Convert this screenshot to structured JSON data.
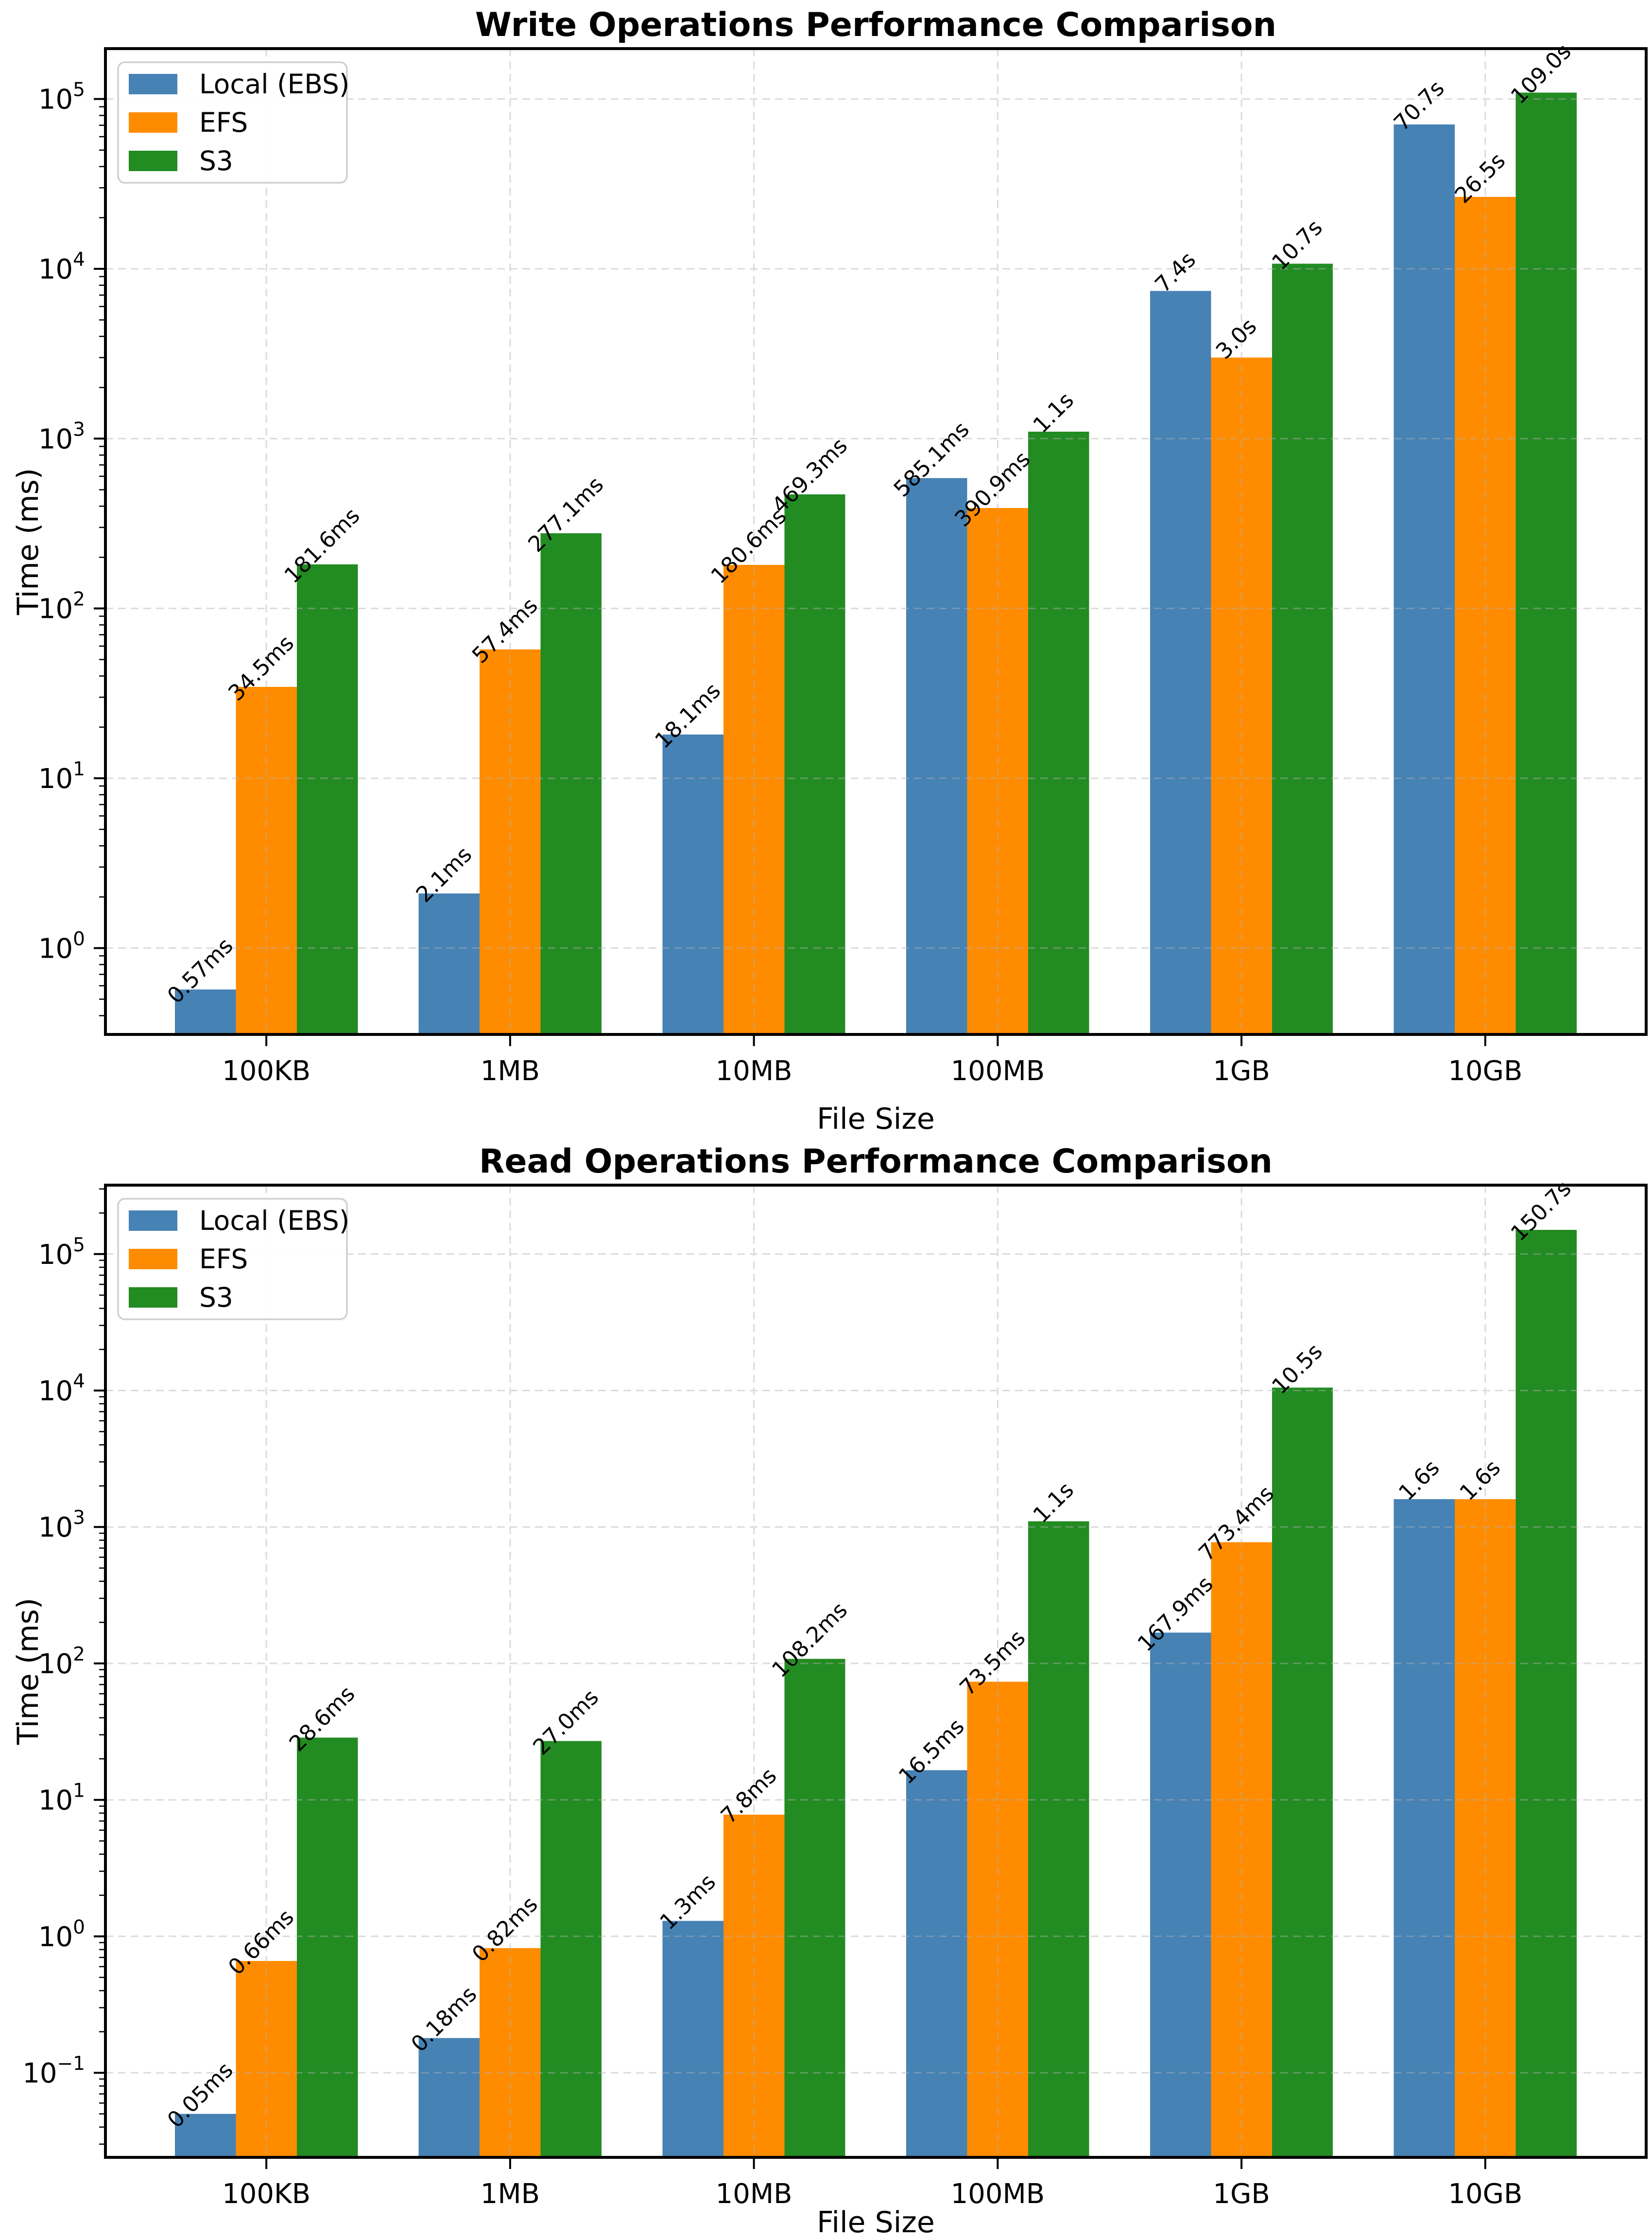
{
  "page": {
    "background": "#ffffff"
  },
  "colors": {
    "local": "#4682B4",
    "efs": "#FF8C00",
    "s3": "#228B22",
    "grid": "#b0b0b0",
    "spine": "#000000",
    "legend_border": "#d0d0d0",
    "legend_fill": "#ffffff"
  },
  "chart_data": [
    {
      "type": "bar",
      "title": "Write Operations Performance Comparison",
      "xlabel": "File Size",
      "ylabel": "Time (ms)",
      "yscale": "log",
      "ylim": [
        0.31,
        198000
      ],
      "grid": true,
      "legend_position": "upper left",
      "categories": [
        "100KB",
        "1MB",
        "10MB",
        "100MB",
        "1GB",
        "10GB"
      ],
      "ytick_exponents": [
        0,
        1,
        2,
        3,
        4,
        5
      ],
      "series": [
        {
          "name": "Local (EBS)",
          "color_key": "local",
          "values": [
            0.57,
            2.1,
            18.1,
            585.1,
            7400,
            70700
          ],
          "labels": [
            "0.57ms",
            "2.1ms",
            "18.1ms",
            "585.1ms",
            "7.4s",
            "70.7s"
          ]
        },
        {
          "name": "EFS",
          "color_key": "efs",
          "values": [
            34.5,
            57.4,
            180.6,
            390.9,
            3000,
            26500
          ],
          "labels": [
            "34.5ms",
            "57.4ms",
            "180.6ms",
            "390.9ms",
            "3.0s",
            "26.5s"
          ]
        },
        {
          "name": "S3",
          "color_key": "s3",
          "values": [
            181.6,
            277.1,
            469.3,
            1100,
            10700,
            109000
          ],
          "labels": [
            "181.6ms",
            "277.1ms",
            "469.3ms",
            "1.1s",
            "10.7s",
            "109.0s"
          ]
        }
      ]
    },
    {
      "type": "bar",
      "title": "Read Operations Performance Comparison",
      "xlabel": "File Size",
      "ylabel": "Time (ms)",
      "yscale": "log",
      "ylim": [
        0.024,
        320000
      ],
      "grid": true,
      "legend_position": "upper left",
      "categories": [
        "100KB",
        "1MB",
        "10MB",
        "100MB",
        "1GB",
        "10GB"
      ],
      "ytick_exponents": [
        -1,
        0,
        1,
        2,
        3,
        4,
        5
      ],
      "series": [
        {
          "name": "Local (EBS)",
          "color_key": "local",
          "values": [
            0.05,
            0.18,
            1.3,
            16.5,
            167.9,
            1600
          ],
          "labels": [
            "0.05ms",
            "0.18ms",
            "1.3ms",
            "16.5ms",
            "167.9ms",
            "1.6s"
          ]
        },
        {
          "name": "EFS",
          "color_key": "efs",
          "values": [
            0.66,
            0.82,
            7.8,
            73.5,
            773.4,
            1600
          ],
          "labels": [
            "0.66ms",
            "0.82ms",
            "7.8ms",
            "73.5ms",
            "773.4ms",
            "1.6s"
          ]
        },
        {
          "name": "S3",
          "color_key": "s3",
          "values": [
            28.6,
            27.0,
            108.2,
            1100,
            10500,
            150700
          ],
          "labels": [
            "28.6ms",
            "27.0ms",
            "108.2ms",
            "1.1s",
            "10.5s",
            "150.7s"
          ]
        }
      ]
    }
  ]
}
